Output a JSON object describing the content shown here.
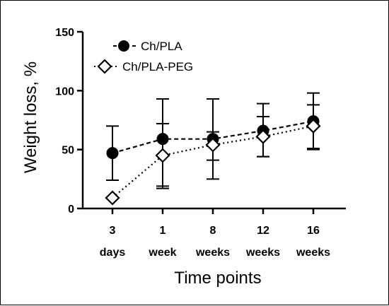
{
  "chart_data": {
    "type": "line",
    "title": "",
    "xlabel": "Time points",
    "ylabel": "Weight loss, %",
    "ylim": [
      0,
      150
    ],
    "yticks": [
      0,
      50,
      100,
      150
    ],
    "categories": [
      {
        "line1": "3",
        "line2": "days"
      },
      {
        "line1": "1",
        "line2": "week"
      },
      {
        "line1": "8",
        "line2": "weeks"
      },
      {
        "line1": "12",
        "line2": "weeks"
      },
      {
        "line1": "16",
        "line2": "weeks"
      }
    ],
    "legend_position": "top-left",
    "series": [
      {
        "name": "Ch/PLA",
        "marker": "filled-circle",
        "line_style": "dashed",
        "color": "#000000",
        "values": [
          47,
          59,
          59,
          66,
          74
        ],
        "error_upper": [
          70,
          93,
          93,
          89,
          98
        ],
        "error_lower": [
          24,
          17,
          25,
          44,
          50
        ]
      },
      {
        "name": "Ch/PLA-PEG",
        "marker": "open-diamond",
        "line_style": "dotted",
        "color": "#000000",
        "values": [
          9,
          45,
          54,
          61,
          70
        ],
        "error_upper": [
          9,
          72,
          65,
          78,
          88
        ],
        "error_lower": [
          9,
          19,
          41,
          44,
          51
        ]
      }
    ]
  }
}
